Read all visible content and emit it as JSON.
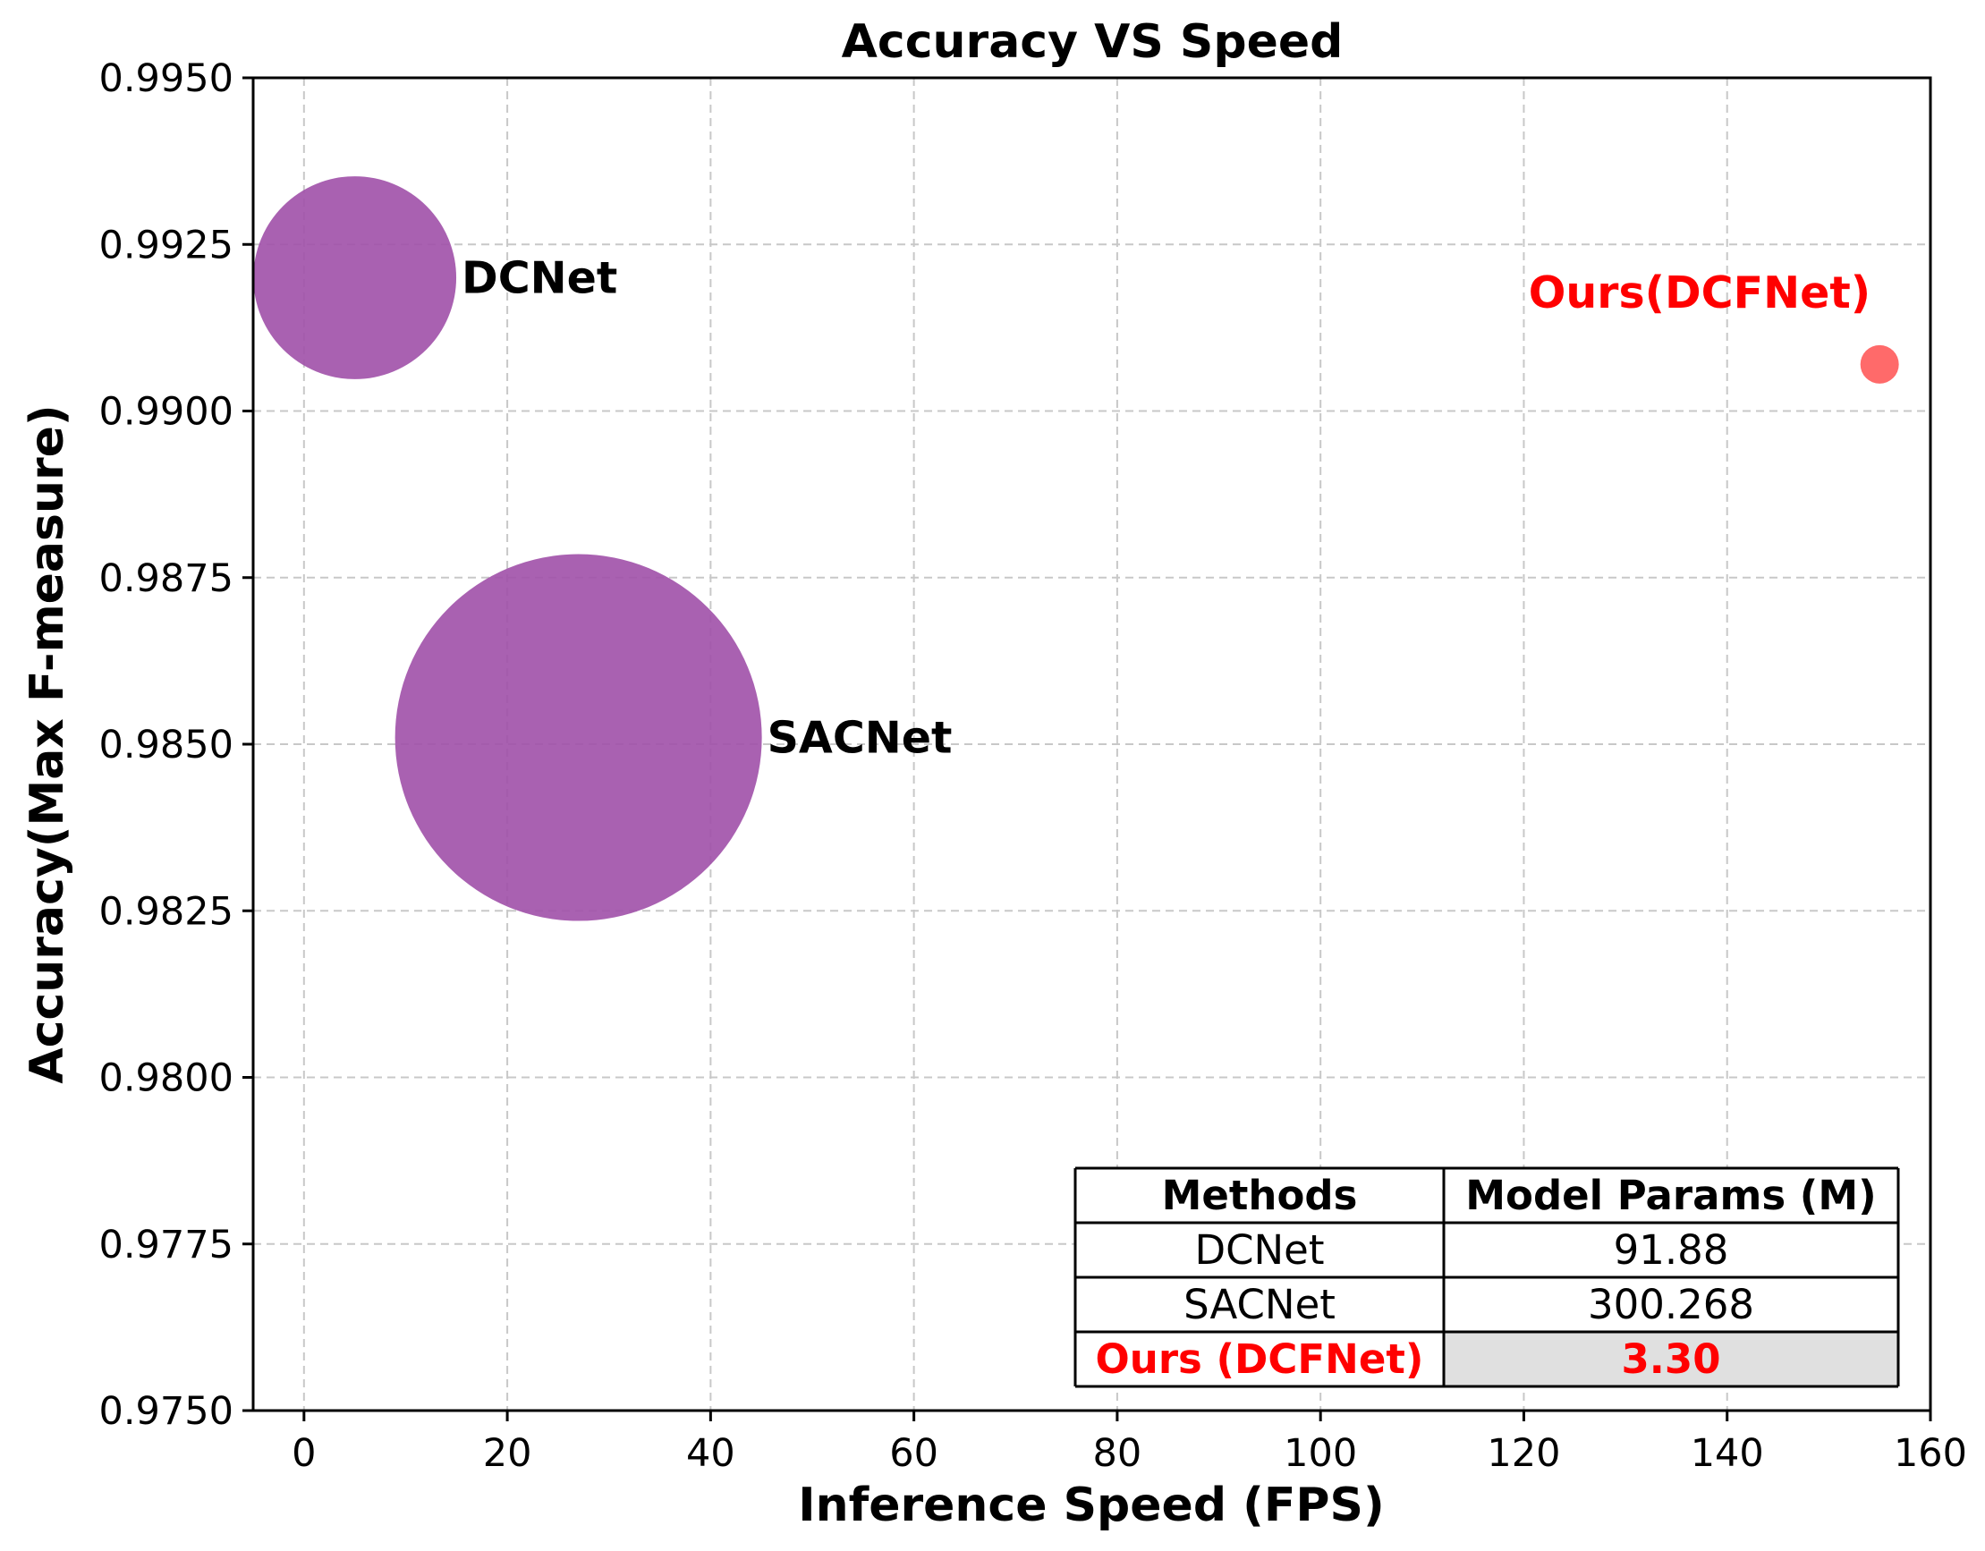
{
  "chart_data": {
    "type": "scatter",
    "title": "Accuracy VS Speed",
    "xlabel": "Inference Speed (FPS)",
    "ylabel": "Accuracy(Max F-measure)",
    "xlim": [
      -5,
      160
    ],
    "ylim": [
      0.975,
      0.995
    ],
    "xticks": [
      0,
      20,
      40,
      60,
      80,
      100,
      120,
      140,
      160
    ],
    "yticks": [
      0.975,
      0.9775,
      0.98,
      0.9825,
      0.985,
      0.9875,
      0.99,
      0.9925,
      0.995
    ],
    "xtick_labels": [
      "0",
      "20",
      "40",
      "60",
      "80",
      "100",
      "120",
      "140",
      "160"
    ],
    "ytick_labels": [
      "0.9750",
      "0.9775",
      "0.9800",
      "0.9825",
      "0.9850",
      "0.9875",
      "0.9900",
      "0.9925",
      "0.9950"
    ],
    "grid": true,
    "size_encoding": "Model Params (M)",
    "points": [
      {
        "label": "DCNet",
        "x": 5,
        "y": 0.992,
        "params": 91.88,
        "color": "#a050a8",
        "label_color": "#000000"
      },
      {
        "label": "SACNet",
        "x": 27,
        "y": 0.9851,
        "params": 300.268,
        "color": "#a050a8",
        "label_color": "#000000"
      },
      {
        "label": "Ours(DCFNet)",
        "x": 155,
        "y": 0.9907,
        "params": 3.3,
        "color": "#ff5a5a",
        "label_color": "#ff0000"
      }
    ],
    "table": {
      "headers": [
        "Methods",
        "Model Params (M)"
      ],
      "rows": [
        [
          "DCNet",
          "91.88"
        ],
        [
          "SACNet",
          "300.268"
        ],
        [
          "Ours (DCFNet)",
          "3.30"
        ]
      ],
      "highlight_row": 2,
      "highlight_text_color": "#ff0000",
      "highlight_fill": "#e0e0e0",
      "placement": "bottom-right"
    }
  }
}
